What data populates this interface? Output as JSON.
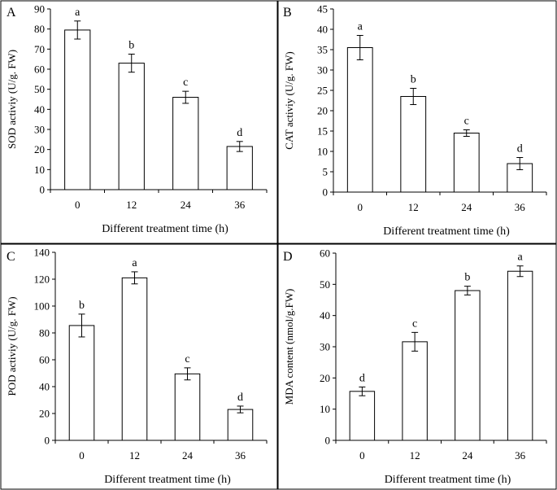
{
  "chart_data": [
    {
      "type": "bar",
      "panel_label": "A",
      "categories": [
        "0",
        "12",
        "24",
        "36"
      ],
      "values": [
        79.5,
        63,
        46,
        21.5
      ],
      "errors": [
        4.5,
        4.5,
        3,
        2.5
      ],
      "significance": [
        "a",
        "b",
        "c",
        "d"
      ],
      "xlabel": "Different treatment time (h)",
      "ylabel": "SOD activiy (U/g. FW)",
      "ylim": [
        0,
        90
      ],
      "yticks": [
        0,
        10,
        20,
        30,
        40,
        50,
        60,
        70,
        80,
        90
      ]
    },
    {
      "type": "bar",
      "panel_label": "B",
      "categories": [
        "0",
        "12",
        "24",
        "36"
      ],
      "values": [
        35.5,
        23.5,
        14.5,
        7
      ],
      "errors": [
        3,
        2,
        0.8,
        1.5
      ],
      "significance": [
        "a",
        "b",
        "c",
        "d"
      ],
      "xlabel": "Different treatment time (h)",
      "ylabel": "CAT activiy (U/g. FW)",
      "ylim": [
        0,
        45
      ],
      "yticks": [
        0,
        5,
        10,
        15,
        20,
        25,
        30,
        35,
        40,
        45
      ]
    },
    {
      "type": "bar",
      "panel_label": "C",
      "categories": [
        "0",
        "12",
        "24",
        "36"
      ],
      "values": [
        85.5,
        121,
        49.5,
        23
      ],
      "errors": [
        8.5,
        4.5,
        4.5,
        2.5
      ],
      "significance": [
        "b",
        "a",
        "c",
        "d"
      ],
      "xlabel": "Different treatment time (h)",
      "ylabel": "POD activiy (U/g. FW)",
      "ylim": [
        0,
        140
      ],
      "yticks": [
        0,
        20,
        40,
        60,
        80,
        100,
        120,
        140
      ]
    },
    {
      "type": "bar",
      "panel_label": "D",
      "categories": [
        "0",
        "12",
        "24",
        "36"
      ],
      "values": [
        15.7,
        31.6,
        48,
        54.2
      ],
      "errors": [
        1.4,
        3,
        1.4,
        1.7
      ],
      "significance": [
        "d",
        "c",
        "b",
        "a"
      ],
      "xlabel": "Different treatment time (h)",
      "ylabel": "MDA content  (nmol/g.FW)",
      "ylim": [
        0,
        60
      ],
      "yticks": [
        0,
        10,
        20,
        30,
        40,
        50,
        60
      ]
    }
  ]
}
